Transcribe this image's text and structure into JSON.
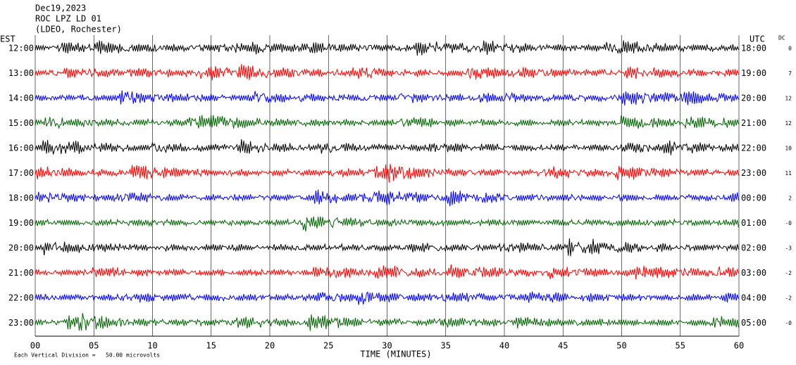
{
  "chart_data": {
    "type": "seismogram",
    "title_lines": [
      "Dec19,2023",
      "ROC LPZ LD 01",
      "(LDEO, Rochester)"
    ],
    "left_axis_title": "EST",
    "right_axis_title": "UTC",
    "dc_title": "DC",
    "left_labels": [
      "12:00",
      "13:00",
      "14:00",
      "15:00",
      "16:00",
      "17:00",
      "18:00",
      "19:00",
      "20:00",
      "21:00",
      "22:00",
      "23:00"
    ],
    "right_labels": [
      "18:00",
      "19:00",
      "20:00",
      "21:00",
      "22:00",
      "23:00",
      "00:00",
      "01:00",
      "02:00",
      "03:00",
      "04:00",
      "05:00"
    ],
    "dc_offsets": [
      0,
      7,
      12,
      12,
      10,
      11,
      2,
      {
        "value": 0,
        "label": "-0"
      },
      -3,
      -2,
      -2,
      {
        "value": 0,
        "label": "-0"
      }
    ],
    "colors": [
      "#000000",
      "#ff0000",
      "#0000ff",
      "#006400"
    ],
    "xlabel": "TIME (MINUTES)",
    "xlim": [
      0,
      60
    ],
    "xticks": [
      {
        "value": 0,
        "label": "00"
      },
      {
        "value": 5,
        "label": "05"
      },
      10,
      15,
      20,
      25,
      30,
      35,
      40,
      45,
      50,
      55,
      60
    ],
    "grid": true,
    "note": "Each Vertical Division =   50.00 microvolts"
  }
}
